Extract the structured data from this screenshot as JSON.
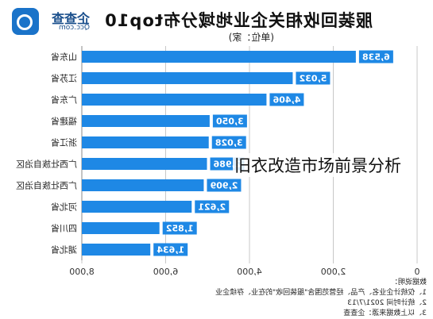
{
  "header": {
    "title": "服装回收相关企业地域分布top10",
    "unit": "(单位：家)",
    "brand_name": "企查查",
    "brand_domain": "Qcc.com"
  },
  "overlay_caption": "旧衣改造市场前景分析",
  "notes": {
    "heading": "数据说明：",
    "line1": "1、仅统计企业名、产品、经营范围含\"服装回收\"的在业、存续企业",
    "line2": "2、统计时间 2021/7/13",
    "line3": "3、以上数据来源：企查查"
  },
  "colors": {
    "bar": "#1e88e5",
    "label_bg": "#1e88e5",
    "label_text": "#ffffff"
  },
  "chart_data": {
    "type": "bar",
    "orientation": "horizontal",
    "mirrored": true,
    "categories": [
      "山东省",
      "江苏省",
      "广东省",
      "福建省",
      "浙江省",
      "广西壮族自治区",
      "广西壮族自治区",
      "河北省",
      "四川省",
      "湖北省"
    ],
    "values": [
      6538,
      5032,
      4406,
      3050,
      3028,
      2986,
      2909,
      2621,
      1852,
      1634
    ],
    "value_labels": [
      "6,538",
      "5,032",
      "4,406",
      "3,050",
      "3,028",
      "2,986",
      "2,909",
      "2,621",
      "1,852",
      "1,634"
    ],
    "xlim": [
      0,
      8000
    ],
    "x_ticks": [
      "0",
      "2,000",
      "4,000",
      "6,000",
      "8,000"
    ],
    "grid": true,
    "xlabel": "",
    "ylabel": ""
  }
}
